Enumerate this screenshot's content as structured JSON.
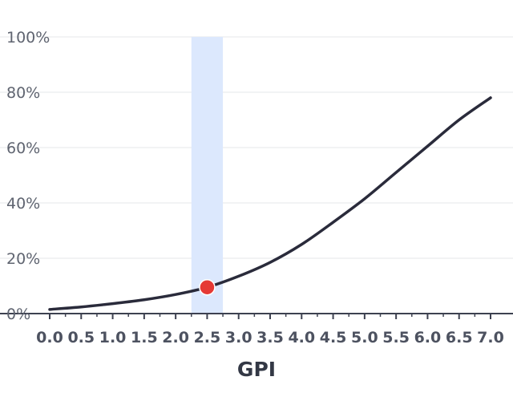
{
  "chart_data": {
    "type": "line",
    "xlabel": "GPI",
    "ylabel": "",
    "title": "",
    "xlim": [
      0,
      7
    ],
    "ylim": [
      0,
      100
    ],
    "x_ticks": [
      0,
      0.5,
      1,
      1.5,
      2,
      2.5,
      3,
      3.5,
      4,
      4.5,
      5,
      5.5,
      6,
      6.5,
      7
    ],
    "x_tick_labels": [
      "0.0",
      "0.5",
      "1.0",
      "1.5",
      "2.0",
      "2.5",
      "3.0",
      "3.5",
      "4.0",
      "4.5",
      "5.0",
      "5.5",
      "6.0",
      "6.5",
      "7.0"
    ],
    "y_ticks": [
      0,
      20,
      40,
      60,
      80,
      100
    ],
    "y_tick_labels": [
      "0%",
      "20%",
      "40%",
      "60%",
      "80%",
      "100%"
    ],
    "grid": "horizontal",
    "series": [
      {
        "color": "#2a2b3b",
        "x": [
          0,
          0.5,
          1,
          1.5,
          2,
          2.5,
          3,
          3.5,
          4,
          4.5,
          5,
          5.5,
          6,
          6.5,
          7
        ],
        "y": [
          1.5,
          2.4,
          3.6,
          5.0,
          6.9,
          9.5,
          13.5,
          18.5,
          25.0,
          33.0,
          41.5,
          51.0,
          60.5,
          70.0,
          78.0
        ]
      }
    ],
    "highlight_band": {
      "x_range": [
        2.25,
        2.75
      ],
      "color": "#dce8fd"
    },
    "highlight_point": {
      "x": 2.5,
      "y": 9.5,
      "color": "#e53935"
    }
  }
}
